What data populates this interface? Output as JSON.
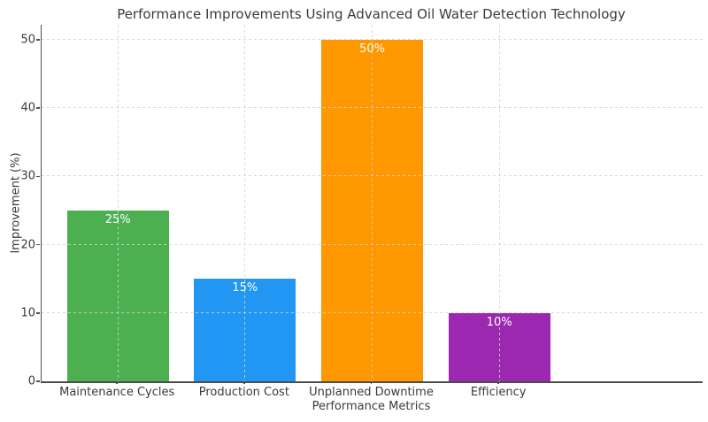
{
  "chart_data": {
    "type": "bar",
    "title": "Performance Improvements Using Advanced Oil Water Detection Technology",
    "xlabel": "Performance Metrics",
    "ylabel": "Improvement (%)",
    "categories": [
      "Maintenance Cycles",
      "Production Cost",
      "Unplanned Downtime",
      "Efficiency"
    ],
    "values": [
      25,
      15,
      50,
      10
    ],
    "bar_labels": [
      "25%",
      "15%",
      "50%",
      "10%"
    ],
    "bar_colors": [
      "#4caf50",
      "#2196f3",
      "#ff9800",
      "#9c27b0"
    ],
    "yticks": [
      0,
      10,
      20,
      30,
      40,
      50
    ],
    "ylim": [
      0,
      52.2
    ],
    "bar_width_fraction": 0.8,
    "grid": "dashed light-gray, horizontal and vertical, drawn over bars",
    "legend": "none",
    "background": "#ffffff",
    "axis_color": "#4d4d4d",
    "text_color": "#3a3a3a"
  }
}
